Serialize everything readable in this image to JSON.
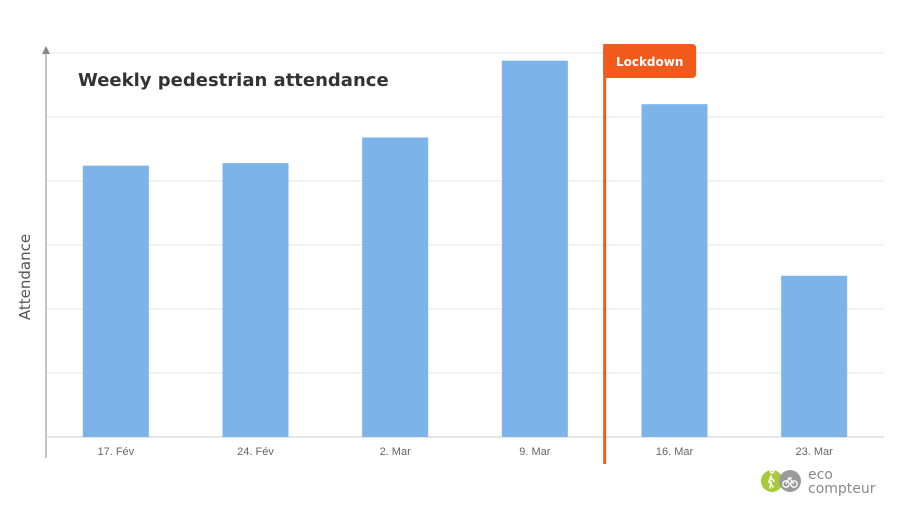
{
  "chart_data": {
    "type": "bar",
    "title": "Weekly pedestrian attendance",
    "ylabel": "Attendance",
    "xlabel": "",
    "categories": [
      "17. Fév",
      "24. Fév",
      "2. Mar",
      "9. Mar",
      "16. Mar",
      "23. Mar"
    ],
    "values": [
      106,
      107,
      117,
      147,
      130,
      63
    ],
    "ylim": [
      0,
      150
    ],
    "grid": true,
    "legend": "none",
    "bar_color": "#7cb4ea",
    "annotations": [
      {
        "label": "Lockdown",
        "between": [
          "9. Mar",
          "16. Mar"
        ],
        "color": "#f05a1a"
      }
    ]
  },
  "branding": {
    "logo_line1": "eco",
    "logo_line2": "compteur",
    "logo_color": "#a8c93a"
  }
}
